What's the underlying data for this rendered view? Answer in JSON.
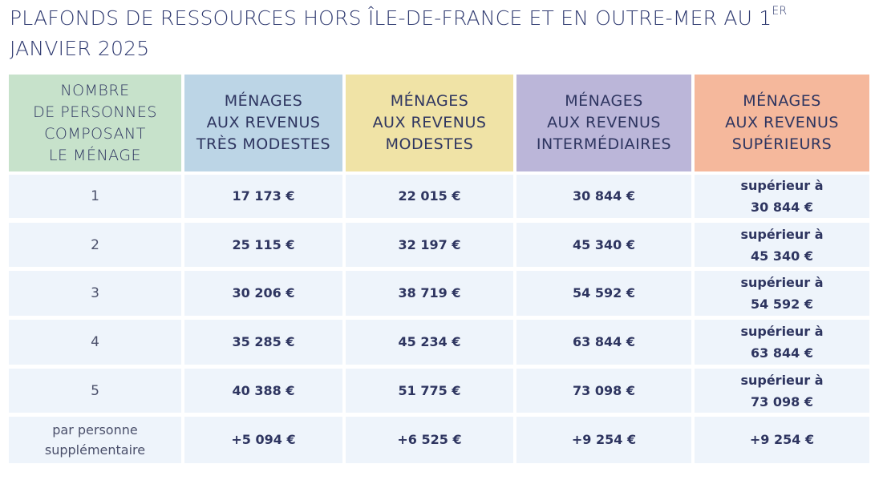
{
  "title": {
    "text": "PLAFONDS DE RESSOURCES HORS ÎLE-DE-FRANCE ET EN OUTRE-MER AU 1",
    "sup": "ER",
    "line2": "JANVIER 2025"
  },
  "colors": {
    "col0": "#c7e2cb",
    "col1": "#bcd5e6",
    "col2": "#f0e3a6",
    "col3": "#bbb6d9",
    "col4": "#f5b89c",
    "row_bg": "#eef4fb",
    "text": "#2e3560"
  },
  "headers": [
    [
      "NOMBRE",
      "DE PERSONNES",
      "COMPOSANT",
      "LE MÉNAGE"
    ],
    [
      "MÉNAGES",
      "AUX REVENUS",
      "TRÈS MODESTES"
    ],
    [
      "MÉNAGES",
      "AUX REVENUS",
      "MODESTES"
    ],
    [
      "MÉNAGES",
      "AUX REVENUS",
      "INTERMÉDIAIRES"
    ],
    [
      "MÉNAGES",
      "AUX REVENUS",
      "SUPÉRIEURS"
    ]
  ],
  "rows": [
    {
      "persons": "1",
      "values": [
        "17 173 €",
        "22 015 €",
        "30 844 €"
      ],
      "sup_prefix": "supérieur à",
      "sup_value": "30 844 €"
    },
    {
      "persons": "2",
      "values": [
        "25 115 €",
        "32 197 €",
        "45 340 €"
      ],
      "sup_prefix": "supérieur à",
      "sup_value": "45 340 €"
    },
    {
      "persons": "3",
      "values": [
        "30 206 €",
        "38 719 €",
        "54 592 €"
      ],
      "sup_prefix": "supérieur à",
      "sup_value": "54 592 €"
    },
    {
      "persons": "4",
      "values": [
        "35 285 €",
        "45 234 €",
        "63 844 €"
      ],
      "sup_prefix": "supérieur à",
      "sup_value": "63 844 €"
    },
    {
      "persons": "5",
      "values": [
        "40 388 €",
        "51 775 €",
        "73 098 €"
      ],
      "sup_prefix": "supérieur à",
      "sup_value": "73 098 €"
    }
  ],
  "extra_row": {
    "label1": "par personne",
    "label2": "supplémentaire",
    "values": [
      "+5 094 €",
      "+6 525 €",
      "+9 254 €",
      "+9 254 €"
    ]
  }
}
